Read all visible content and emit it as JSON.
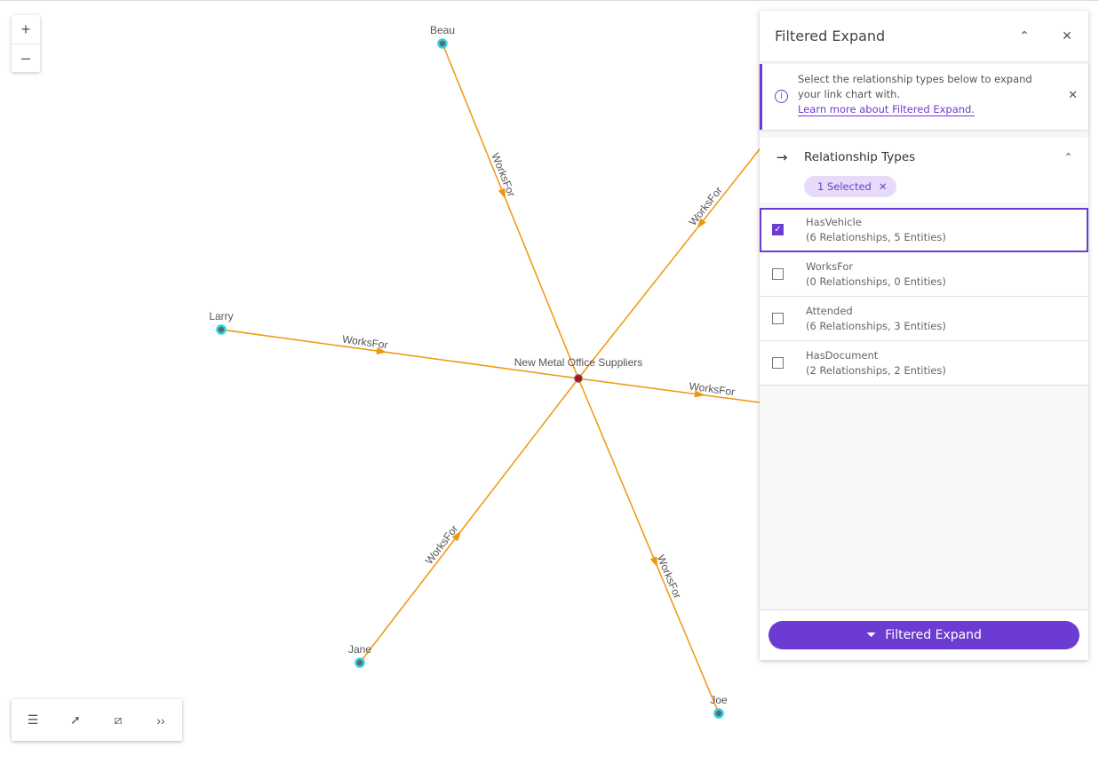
{
  "graph": {
    "center": {
      "label": "New Metal Office Suppliers",
      "color": "#b01020"
    },
    "node_color": "#2ad4e0",
    "edge_color": "#f0960c",
    "edge_label": "WorksFor",
    "nodes": [
      "Beau",
      "Larry",
      "Jane",
      "Joe"
    ]
  },
  "zoom": {
    "in": "+",
    "out": "–"
  },
  "toolbar": {
    "icons": [
      "list-icon",
      "select-icon",
      "layout-icon",
      "expand-chevrons-icon"
    ],
    "more": "››"
  },
  "panel": {
    "title": "Filtered Expand",
    "notice": {
      "text": "Select the relationship types below to expand your link chart with.",
      "link": "Learn more about Filtered Expand."
    },
    "section": "Relationship Types",
    "chip": "1 Selected",
    "items": [
      {
        "name": "HasVehicle",
        "detail": "(6 Relationships, 5 Entities)",
        "checked": true
      },
      {
        "name": "WorksFor",
        "detail": "(0 Relationships, 0 Entities)",
        "checked": false
      },
      {
        "name": "Attended",
        "detail": "(6 Relationships, 3 Entities)",
        "checked": false
      },
      {
        "name": "HasDocument",
        "detail": "(2 Relationships, 2 Entities)",
        "checked": false
      }
    ],
    "button": "Filtered Expand"
  }
}
